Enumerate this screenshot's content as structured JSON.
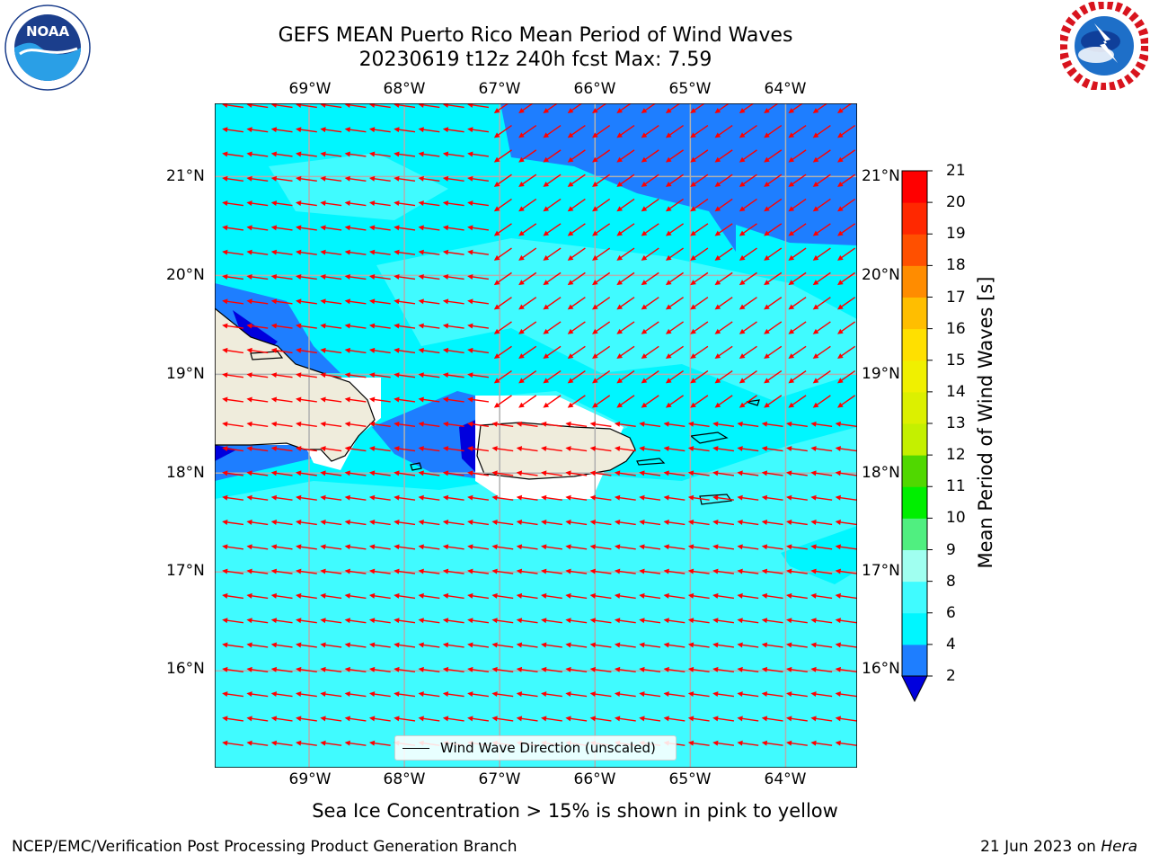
{
  "header": {
    "title_line1": "GEFS MEAN Puerto Rico Mean Period of Wind Waves",
    "title_line2": "20230619 t12z 240h fcst   Max: 7.59"
  },
  "logos": {
    "left": {
      "name": "NOAA",
      "ring_text": "NATIONAL OCEANIC AND ATMOSPHERIC ADMINISTRATION · U.S. DEPARTMENT OF COMMERCE"
    },
    "right": {
      "name": "NATIONAL WEATHER SERVICE"
    }
  },
  "map": {
    "lon_labels": [
      "69°W",
      "68°W",
      "67°W",
      "66°W",
      "65°W",
      "64°W"
    ],
    "lat_labels": [
      "21°N",
      "20°N",
      "19°N",
      "18°N",
      "17°N",
      "16°N"
    ],
    "lon_values": [
      -69,
      -68,
      -67,
      -66,
      -65,
      -64
    ],
    "lat_values": [
      21,
      20,
      19,
      18,
      17,
      16
    ],
    "extent": {
      "lon": [
        -69.99,
        -63.25
      ],
      "lat": [
        15.02,
        21.74
      ]
    },
    "grid": true,
    "vector_field": "Wind Wave Direction (unscaled)",
    "vector_color": "#ff0000",
    "land_color": "#efecdc",
    "legend_label": "Wind Wave Direction (unscaled)"
  },
  "colorbar": {
    "label": "Mean Period of Wind Waves [s]",
    "ticks": [
      "2",
      "4",
      "6",
      "8",
      "9",
      "10",
      "11",
      "12",
      "13",
      "14",
      "15",
      "16",
      "17",
      "18",
      "19",
      "20",
      "21"
    ],
    "colors": [
      "#0000dd",
      "#1e7eff",
      "#00f6ff",
      "#40fbff",
      "#a0fff0",
      "#50ef80",
      "#00ef00",
      "#50d800",
      "#c4f000",
      "#dcf000",
      "#f0f000",
      "#ffe000",
      "#ffbe00",
      "#ff8c00",
      "#ff5000",
      "#ff2800",
      "#ff0000"
    ],
    "extend": "min"
  },
  "footer": {
    "subtitle": "Sea Ice Concentration > 15% is shown in pink to yellow",
    "left": "NCEP/EMC/Verification Post Processing Product Generation Branch",
    "right_date": "21 Jun 2023 on ",
    "right_host": "Hera"
  }
}
